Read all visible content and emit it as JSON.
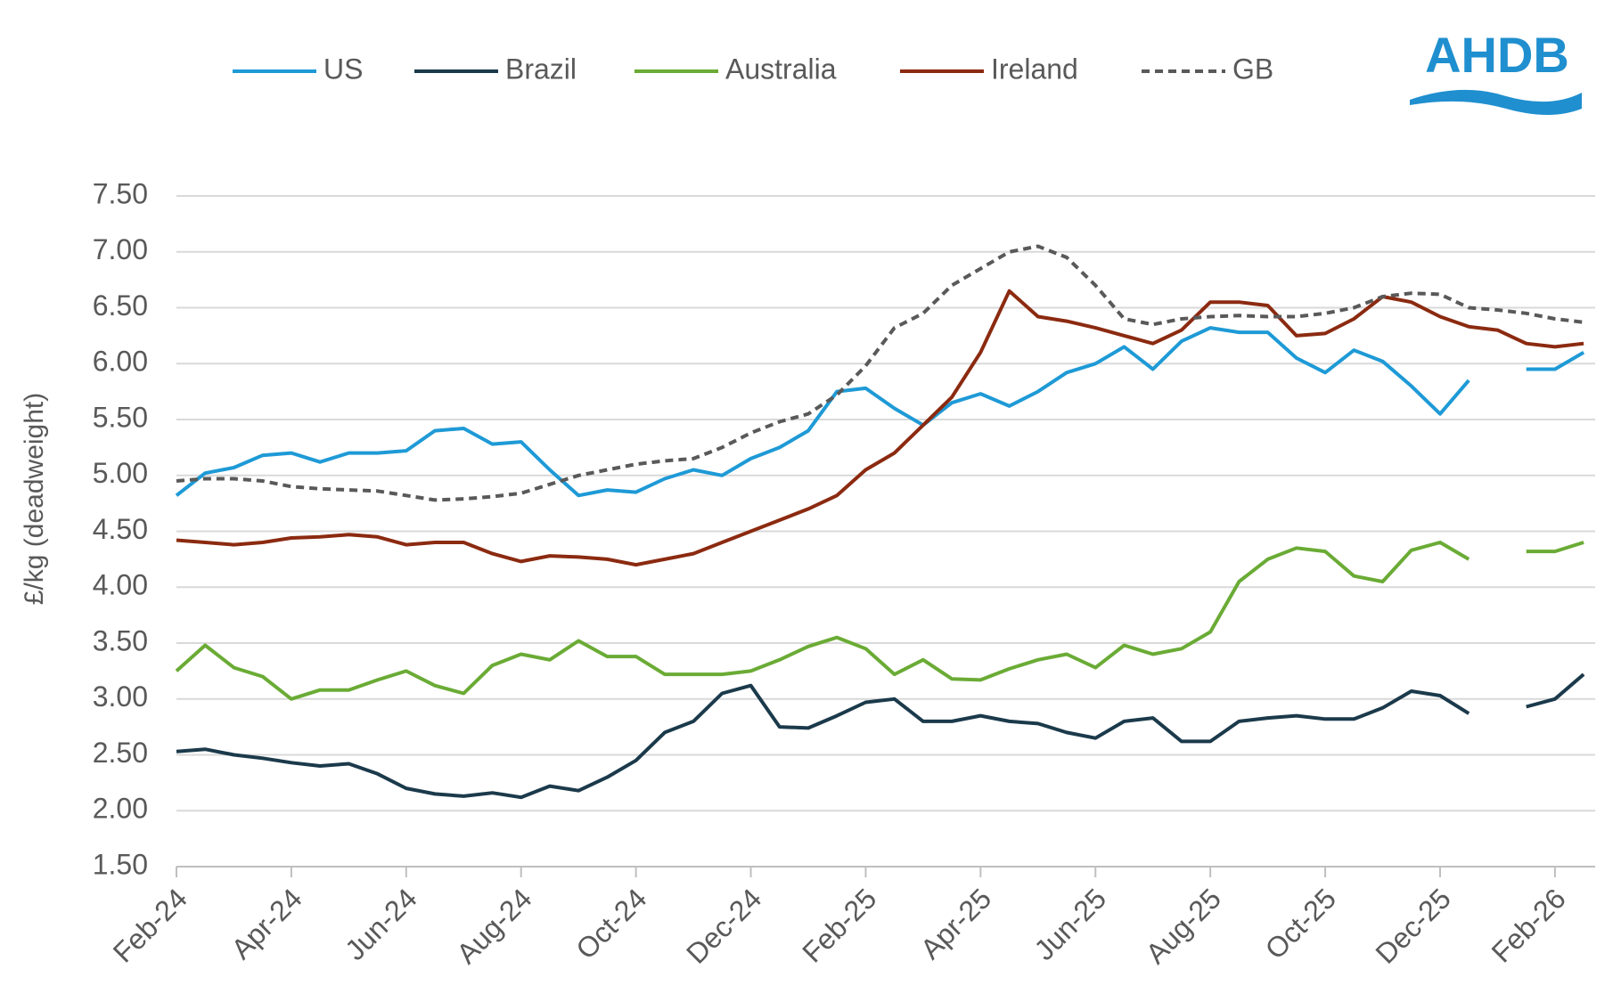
{
  "chart_data": {
    "type": "line",
    "y_label": "£/kg (deadweight)",
    "logo": "AHDB",
    "x": [
      0,
      0.5,
      1,
      1.5,
      2,
      2.5,
      3,
      3.5,
      4,
      4.5,
      5,
      5.5,
      6,
      6.5,
      7,
      7.5,
      8,
      8.5,
      9,
      9.5,
      10,
      10.5,
      11,
      11.5,
      12,
      12.5,
      13,
      13.5,
      14,
      14.5,
      15,
      15.5,
      16,
      16.5,
      17,
      17.5,
      18,
      18.5,
      19,
      19.5,
      20,
      20.5,
      21,
      21.5,
      22,
      22.5,
      23,
      23.5,
      24,
      24.5
    ],
    "xlim": [
      0,
      24.7
    ],
    "xticks": [
      {
        "value": 0,
        "label": "Feb-24"
      },
      {
        "value": 2,
        "label": "Apr-24"
      },
      {
        "value": 4,
        "label": "Jun-24"
      },
      {
        "value": 6,
        "label": "Aug-24"
      },
      {
        "value": 8,
        "label": "Oct-24"
      },
      {
        "value": 10,
        "label": "Dec-24"
      },
      {
        "value": 12,
        "label": "Feb-25"
      },
      {
        "value": 14,
        "label": "Apr-25"
      },
      {
        "value": 16,
        "label": "Jun-25"
      },
      {
        "value": 18,
        "label": "Aug-25"
      },
      {
        "value": 20,
        "label": "Oct-25"
      },
      {
        "value": 22,
        "label": "Dec-25"
      },
      {
        "value": 24,
        "label": "Feb-26"
      }
    ],
    "ylim": [
      1.5,
      7.5
    ],
    "yticks": [
      {
        "value": 1.5,
        "label": "1.50"
      },
      {
        "value": 2,
        "label": "2.00"
      },
      {
        "value": 2.5,
        "label": "2.50"
      },
      {
        "value": 3,
        "label": "3.00"
      },
      {
        "value": 3.5,
        "label": "3.50"
      },
      {
        "value": 4,
        "label": "4.00"
      },
      {
        "value": 4.5,
        "label": "4.50"
      },
      {
        "value": 5,
        "label": "5.00"
      },
      {
        "value": 5.5,
        "label": "5.50"
      },
      {
        "value": 6,
        "label": "6.00"
      },
      {
        "value": 6.5,
        "label": "6.50"
      },
      {
        "value": 7,
        "label": "7.00"
      },
      {
        "value": 7.5,
        "label": "7.50"
      }
    ],
    "grid": true,
    "legend": "top",
    "series": [
      {
        "name": "US",
        "color": "#1e9ad6",
        "style": "solid",
        "values": [
          4.82,
          5.02,
          5.07,
          5.18,
          5.2,
          5.12,
          5.2,
          5.2,
          5.22,
          5.4,
          5.42,
          5.28,
          5.3,
          5.05,
          4.82,
          4.87,
          4.85,
          4.97,
          5.05,
          5.0,
          5.15,
          5.25,
          5.4,
          5.75,
          5.78,
          5.6,
          5.45,
          5.65,
          5.73,
          5.62,
          5.75,
          5.92,
          6.0,
          6.15,
          5.95,
          6.2,
          6.32,
          6.28,
          6.28,
          6.05,
          5.92,
          6.12,
          6.02,
          5.8,
          5.55,
          5.85,
          null,
          5.95,
          5.95,
          6.1
        ]
      },
      {
        "name": "Brazil",
        "color": "#1b3a4b",
        "style": "solid",
        "values": [
          2.53,
          2.55,
          2.5,
          2.47,
          2.43,
          2.4,
          2.42,
          2.33,
          2.2,
          2.15,
          2.13,
          2.16,
          2.12,
          2.22,
          2.18,
          2.3,
          2.45,
          2.7,
          2.8,
          3.05,
          3.12,
          2.75,
          2.74,
          2.85,
          2.97,
          3.0,
          2.8,
          2.8,
          2.85,
          2.8,
          2.78,
          2.7,
          2.65,
          2.8,
          2.83,
          2.62,
          2.62,
          2.8,
          2.83,
          2.85,
          2.82,
          2.82,
          2.92,
          3.07,
          3.03,
          2.87,
          null,
          2.93,
          3.0,
          3.22
        ]
      },
      {
        "name": "Australia",
        "color": "#6aab35",
        "style": "solid",
        "values": [
          3.25,
          3.48,
          3.28,
          3.2,
          3.0,
          3.08,
          3.08,
          3.17,
          3.25,
          3.12,
          3.05,
          3.3,
          3.4,
          3.35,
          3.52,
          3.38,
          3.38,
          3.22,
          3.22,
          3.22,
          3.25,
          3.35,
          3.47,
          3.55,
          3.45,
          3.22,
          3.35,
          3.18,
          3.17,
          3.27,
          3.35,
          3.4,
          3.28,
          3.48,
          3.4,
          3.45,
          3.6,
          4.05,
          4.25,
          4.35,
          4.32,
          4.1,
          4.05,
          4.33,
          4.4,
          4.25,
          null,
          4.32,
          4.32,
          4.4
        ]
      },
      {
        "name": "Ireland",
        "color": "#8b2a10",
        "style": "solid",
        "values": [
          4.42,
          4.4,
          4.38,
          4.4,
          4.44,
          4.45,
          4.47,
          4.45,
          4.38,
          4.4,
          4.4,
          4.3,
          4.23,
          4.28,
          4.27,
          4.25,
          4.2,
          4.25,
          4.3,
          4.4,
          4.5,
          4.6,
          4.7,
          4.82,
          5.05,
          5.2,
          5.45,
          5.7,
          6.1,
          6.65,
          6.42,
          6.38,
          6.32,
          6.25,
          6.18,
          6.3,
          6.55,
          6.55,
          6.52,
          6.25,
          6.27,
          6.4,
          6.6,
          6.55,
          6.42,
          6.33,
          6.3,
          6.18,
          6.15,
          6.18
        ]
      },
      {
        "name": "GB",
        "color": "#595959",
        "style": "dashed",
        "values": [
          4.95,
          4.97,
          4.97,
          4.95,
          4.9,
          4.88,
          4.87,
          4.86,
          4.82,
          4.78,
          4.79,
          4.81,
          4.84,
          4.92,
          5.0,
          5.05,
          5.1,
          5.13,
          5.15,
          5.25,
          5.38,
          5.48,
          5.55,
          5.72,
          5.98,
          6.32,
          6.45,
          6.7,
          6.85,
          7.0,
          7.05,
          6.95,
          6.7,
          6.4,
          6.35,
          6.4,
          6.42,
          6.43,
          6.42,
          6.42,
          6.45,
          6.5,
          6.6,
          6.63,
          6.62,
          6.5,
          6.48,
          6.45,
          6.4,
          6.37
        ]
      }
    ]
  }
}
